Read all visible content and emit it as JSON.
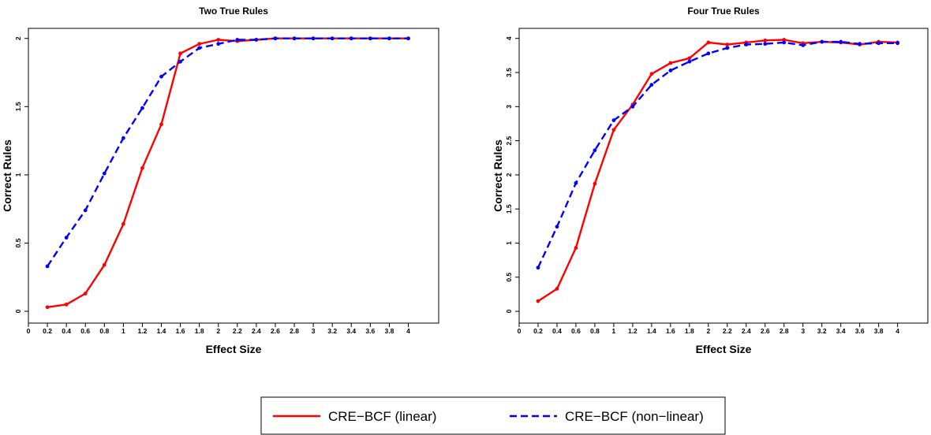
{
  "chart_data": [
    {
      "type": "line",
      "title": "Two True Rules",
      "xlabel": "Effect Size",
      "ylabel": "Correct Rules",
      "xlim": [
        0,
        4
      ],
      "ylim": [
        0,
        2
      ],
      "x_ticks": [
        "0",
        "0.2",
        "0.4",
        "0.6",
        "0.8",
        "1",
        "1.2",
        "1.4",
        "1.6",
        "1.8",
        "2",
        "2.2",
        "2.4",
        "2.6",
        "2.8",
        "3",
        "3.2",
        "3.4",
        "3.6",
        "3.8",
        "4"
      ],
      "y_ticks": [
        "0",
        "0.5",
        "1",
        "1.5",
        "2"
      ],
      "x": [
        0.2,
        0.4,
        0.6,
        0.8,
        1.0,
        1.2,
        1.4,
        1.6,
        1.8,
        2.0,
        2.2,
        2.4,
        2.6,
        2.8,
        3.0,
        3.2,
        3.4,
        3.6,
        3.8,
        4.0
      ],
      "series": [
        {
          "name": "CRE−BCF (linear)",
          "color": "#ff0000",
          "dash": "solid",
          "values": [
            0.03,
            0.05,
            0.13,
            0.34,
            0.64,
            1.05,
            1.37,
            1.89,
            1.96,
            1.99,
            1.98,
            1.99,
            2.0,
            2.0,
            2.0,
            2.0,
            2.0,
            2.0,
            2.0,
            2.0
          ]
        },
        {
          "name": "CRE−BCF (non−linear)",
          "color": "#0000ff",
          "dash": "dashed",
          "values": [
            0.33,
            0.54,
            0.74,
            1.01,
            1.27,
            1.49,
            1.72,
            1.83,
            1.93,
            1.96,
            1.99,
            1.99,
            2.0,
            2.0,
            2.0,
            2.0,
            2.0,
            2.0,
            2.0,
            2.0
          ]
        }
      ]
    },
    {
      "type": "line",
      "title": "Four True Rules",
      "xlabel": "Effect Size",
      "ylabel": "Correct Rules",
      "xlim": [
        0,
        4
      ],
      "ylim": [
        0,
        4
      ],
      "x_ticks": [
        "0",
        "0.2",
        "0.4",
        "0.6",
        "0.8",
        "1",
        "1.2",
        "1.4",
        "1.6",
        "1.8",
        "2",
        "2.2",
        "2.4",
        "2.6",
        "2.8",
        "3",
        "3.2",
        "3.4",
        "3.6",
        "3.8",
        "4"
      ],
      "y_ticks": [
        "0",
        "0.5",
        "1",
        "1.5",
        "2",
        "2.5",
        "3",
        "3.5",
        "4"
      ],
      "x": [
        0.2,
        0.4,
        0.6,
        0.8,
        1.0,
        1.2,
        1.4,
        1.6,
        1.8,
        2.0,
        2.2,
        2.4,
        2.6,
        2.8,
        3.0,
        3.2,
        3.4,
        3.6,
        3.8,
        4.0
      ],
      "series": [
        {
          "name": "CRE−BCF (linear)",
          "color": "#ff0000",
          "dash": "solid",
          "values": [
            0.15,
            0.33,
            0.93,
            1.87,
            2.66,
            3.03,
            3.48,
            3.64,
            3.71,
            3.94,
            3.91,
            3.94,
            3.97,
            3.98,
            3.93,
            3.95,
            3.94,
            3.91,
            3.95,
            3.94
          ]
        },
        {
          "name": "CRE−BCF (non−linear)",
          "color": "#0000ff",
          "dash": "dashed",
          "values": [
            0.64,
            1.24,
            1.88,
            2.36,
            2.8,
            3.0,
            3.32,
            3.53,
            3.66,
            3.78,
            3.86,
            3.91,
            3.92,
            3.94,
            3.9,
            3.95,
            3.95,
            3.92,
            3.93,
            3.93
          ]
        }
      ]
    }
  ],
  "legend": {
    "placement": "bottom-center",
    "items": [
      {
        "label": "CRE−BCF (linear)",
        "color": "#ff0000",
        "dash": "solid"
      },
      {
        "label": "CRE−BCF (non−linear)",
        "color": "#0000ff",
        "dash": "dashed"
      }
    ]
  }
}
